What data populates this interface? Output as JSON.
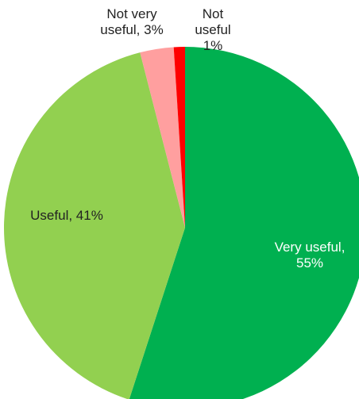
{
  "chart_data": {
    "type": "pie",
    "categories": [
      "Very useful",
      "Useful",
      "Not very useful",
      "Not useful"
    ],
    "values": [
      55,
      41,
      3,
      1
    ],
    "value_labels": [
      "55%",
      "41%",
      "3%",
      "1%"
    ],
    "colors": [
      "#00b050",
      "#92d050",
      "#ff9f9f",
      "#ff0000"
    ],
    "start_angle": 0,
    "direction": "clockwise"
  }
}
